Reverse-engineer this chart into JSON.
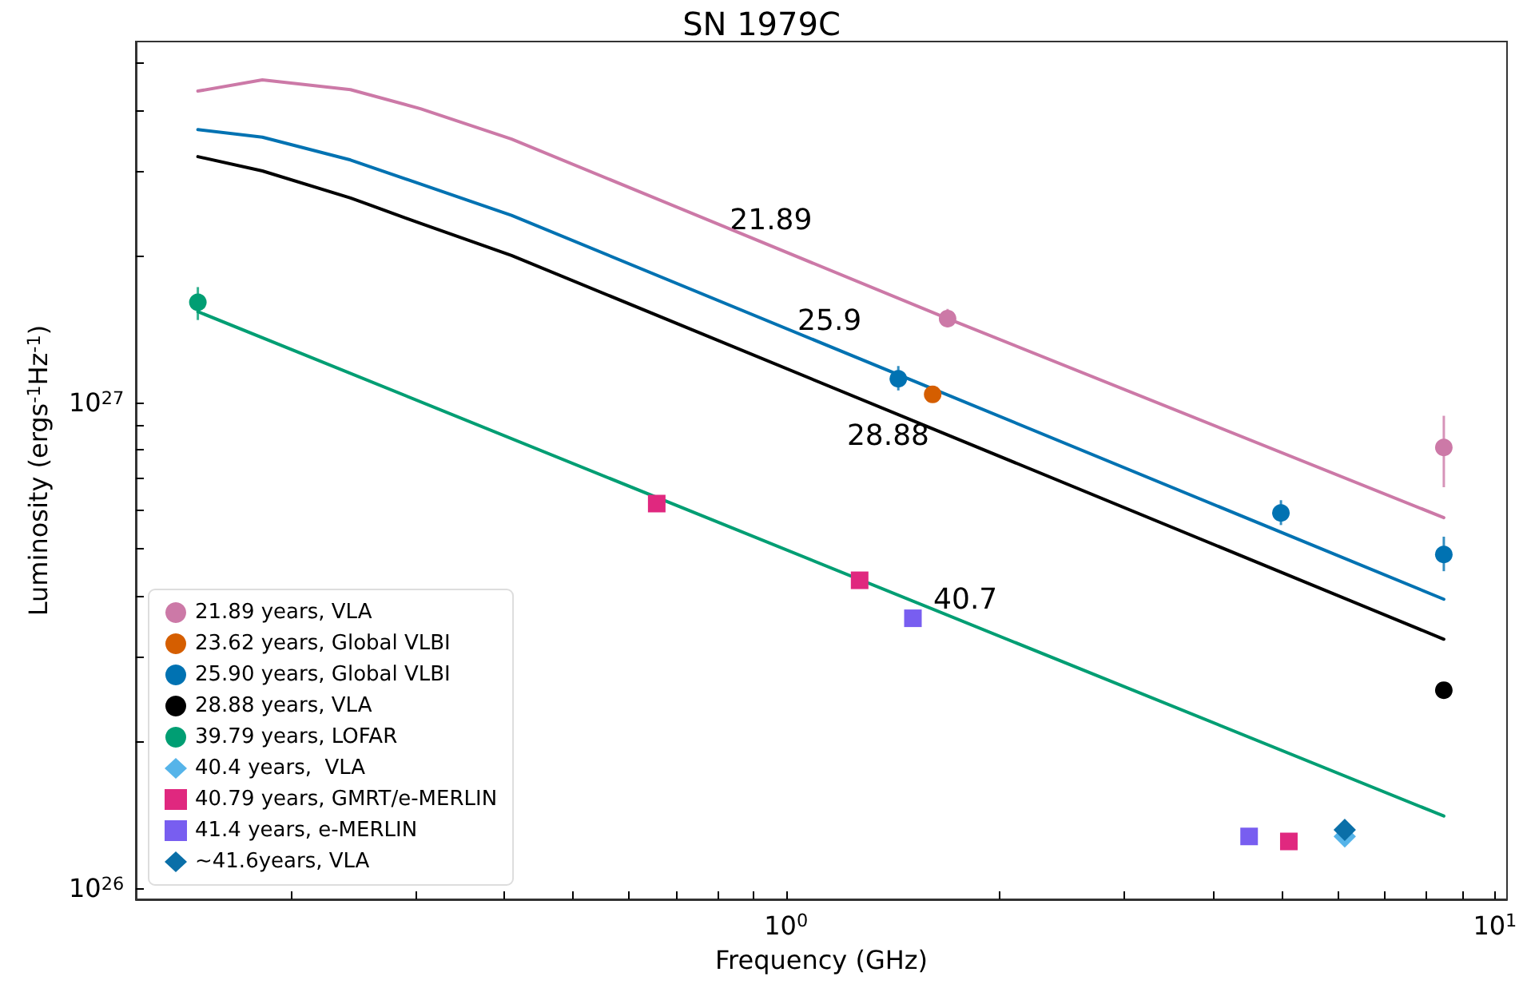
{
  "chart_data": {
    "type": "scatter",
    "title": "SN 1979C",
    "xlabel": "Frequency (GHz)",
    "ylabel": "Luminosity (ergs$^{-1}$Hz$^{-1}$)",
    "log": "xy",
    "grid": false,
    "legend": "bottom left",
    "xlim": [
      0.121,
      10.4
    ],
    "ylim": [
      9.5e+25,
      5.54e+27
    ],
    "xticks": [
      {
        "value": 0.2,
        "label": null
      },
      {
        "value": 0.3,
        "label": null
      },
      {
        "value": 0.4,
        "label": null
      },
      {
        "value": 0.5,
        "label": null
      },
      {
        "value": 0.6,
        "label": null
      },
      {
        "value": 0.7,
        "label": null
      },
      {
        "value": 0.8,
        "label": null
      },
      {
        "value": 0.9,
        "label": null
      },
      {
        "value": 1,
        "label": "10$^{0}$"
      },
      {
        "value": 2,
        "label": null
      },
      {
        "value": 3,
        "label": null
      },
      {
        "value": 4,
        "label": null
      },
      {
        "value": 5,
        "label": null
      },
      {
        "value": 6,
        "label": null
      },
      {
        "value": 7,
        "label": null
      },
      {
        "value": 8,
        "label": null
      },
      {
        "value": 9,
        "label": null
      },
      {
        "value": 10,
        "label": "10$^{1}$"
      }
    ],
    "yticks": [
      {
        "value": 1e+26,
        "label": "10$^{26}$"
      },
      {
        "value": 2e+26,
        "label": null
      },
      {
        "value": 3e+26,
        "label": null
      },
      {
        "value": 4e+26,
        "label": null
      },
      {
        "value": 5e+26,
        "label": null
      },
      {
        "value": 6e+26,
        "label": null
      },
      {
        "value": 7e+26,
        "label": null
      },
      {
        "value": 8e+26,
        "label": null
      },
      {
        "value": 9e+26,
        "label": null
      },
      {
        "value": 1e+27,
        "label": "10$^{27}$"
      },
      {
        "value": 2e+27,
        "label": null
      },
      {
        "value": 3e+27,
        "label": null
      },
      {
        "value": 4e+27,
        "label": null
      },
      {
        "value": 5e+27,
        "label": null
      }
    ],
    "series": [
      {
        "type": "line",
        "name": "21.89",
        "color": "#cc79a7",
        "marker": "none",
        "line_style": "solid",
        "x": [
          0.148,
          0.1825,
          0.243,
          0.305,
          0.41,
          1.69,
          8.47
        ],
        "values": [
          4.38e+27,
          4.62e+27,
          4.41e+27,
          4.03e+27,
          3.49e+27,
          1.49e+27,
          5.8e+26
        ]
      },
      {
        "type": "line",
        "name": "25.9",
        "color": "#0072b2",
        "marker": "none",
        "line_style": "solid",
        "x": [
          0.148,
          0.1825,
          0.243,
          0.305,
          0.41,
          8.47
        ],
        "values": [
          3.65e+27,
          3.52e+27,
          3.16e+27,
          2.82e+27,
          2.43e+27,
          3.94e+26
        ]
      },
      {
        "type": "line",
        "name": "28.88",
        "color": "#000000",
        "marker": "none",
        "line_style": "solid",
        "x": [
          0.148,
          0.1825,
          0.243,
          0.305,
          0.41,
          8.47
        ],
        "values": [
          3.21e+27,
          3e+27,
          2.64e+27,
          2.34e+27,
          2.01e+27,
          3.26e+26
        ]
      },
      {
        "type": "line",
        "name": "40.7",
        "color": "#009e73",
        "marker": "none",
        "line_style": "solid",
        "x": [
          0.148,
          8.47
        ],
        "values": [
          1.54e+27,
          1.41e+26
        ]
      },
      {
        "name": "21.89 years, VLA",
        "color": "#cc79a7",
        "marker": "circle",
        "x": [
          1.69,
          8.47
        ],
        "values": [
          1.49e+27,
          8.09e+26
        ],
        "errors": [
          [
            1.43e+27,
            1.56e+27
          ],
          [
            6.7e+26,
            9.4e+26
          ]
        ]
      },
      {
        "name": "23.62 years, Global VLBI",
        "color": "#d55e00",
        "marker": "circle",
        "x": [
          1.61
        ],
        "values": [
          1.04e+27
        ]
      },
      {
        "name": "25.90 years, Global VLBI",
        "color": "#0072b2",
        "marker": "circle",
        "x": [
          1.44,
          4.99,
          8.47
        ],
        "values": [
          1.12e+27,
          5.93e+26,
          4.87e+26
        ],
        "errors": [
          [
            1.06e+27,
            1.19e+27
          ],
          [
            5.6e+26,
            6.3e+26
          ],
          [
            4.5e+26,
            5.3e+26
          ]
        ]
      },
      {
        "name": "28.88 years, VLA",
        "color": "#000000",
        "marker": "circle",
        "x": [
          8.47
        ],
        "values": [
          2.56e+26
        ]
      },
      {
        "name": "39.79 years, LOFAR",
        "color": "#009e73",
        "marker": "circle",
        "x": [
          0.148
        ],
        "values": [
          1.61e+27
        ],
        "errors": [
          [
            1.48e+27,
            1.73e+27
          ]
        ]
      },
      {
        "name": "40.4 years,  VLA",
        "color": "#56b4e9",
        "marker": "diamond",
        "x": [
          6.14
        ],
        "values": [
          1.28e+26
        ]
      },
      {
        "name": "40.79 years, GMRT/e-MERLIN",
        "color": "#e0287f",
        "marker": "square",
        "x": [
          0.657,
          1.27,
          5.12
        ],
        "values": [
          6.2e+26,
          4.31e+26,
          1.25e+26
        ]
      },
      {
        "name": "41.4 years, e-MERLIN",
        "color": "#785ef0",
        "marker": "square",
        "x": [
          1.51,
          4.5
        ],
        "values": [
          3.6e+26,
          1.28e+26
        ]
      },
      {
        "name": "~41.6years, VLA",
        "color": "#0a6fa8",
        "marker": "diamond",
        "x": [
          6.14
        ],
        "values": [
          1.32e+26
        ]
      }
    ]
  }
}
